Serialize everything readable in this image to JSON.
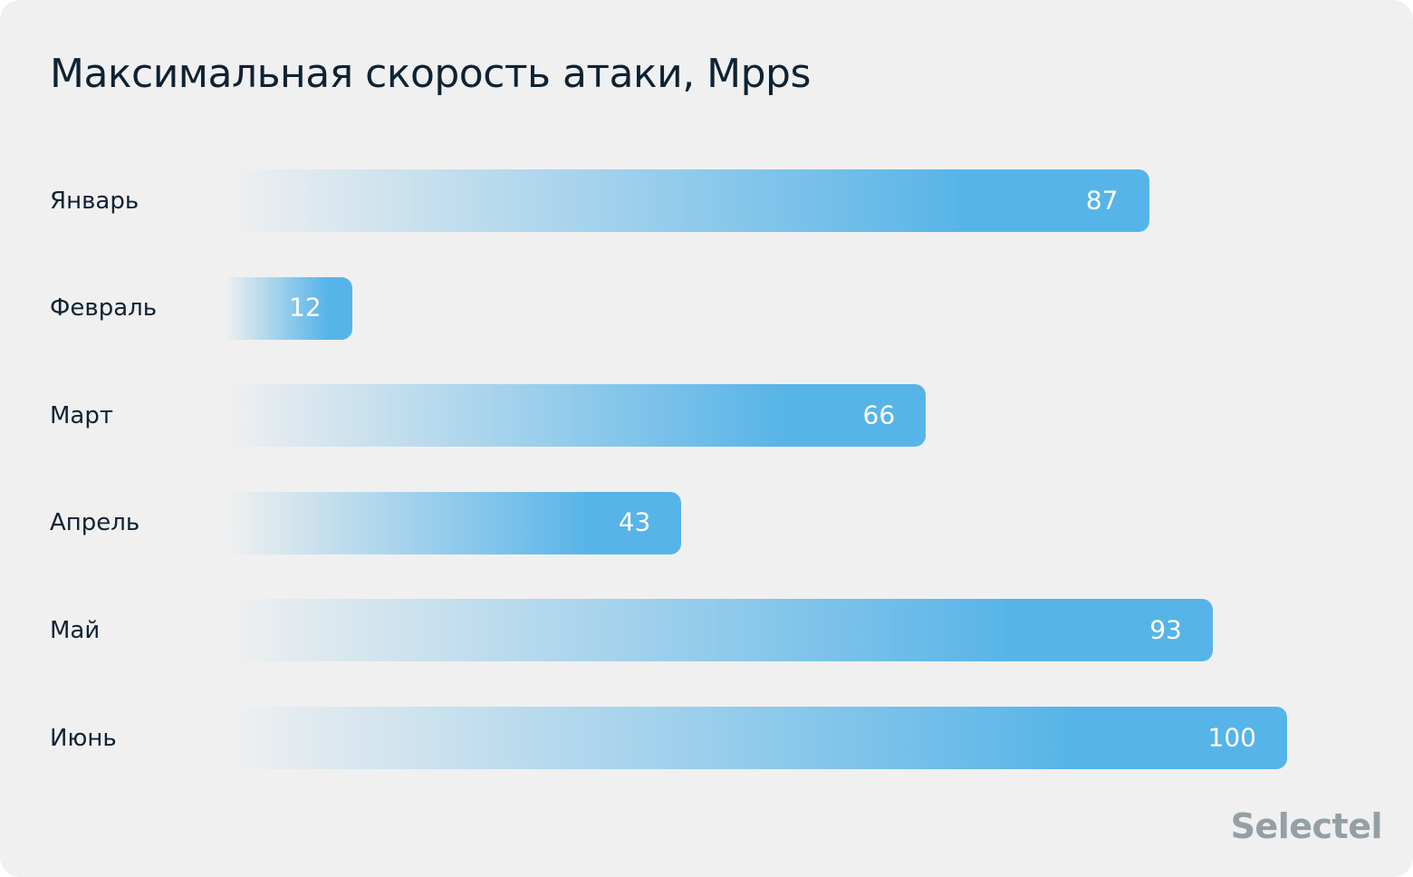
{
  "chart_data": {
    "type": "bar",
    "orientation": "horizontal",
    "title": "Максимальная скорость атаки, Mpps",
    "categories": [
      "Январь",
      "Февраль",
      "Март",
      "Апрель",
      "Май",
      "Июнь"
    ],
    "values": [
      87,
      12,
      66,
      43,
      93,
      100
    ],
    "xlim": [
      0,
      100
    ],
    "grid": false,
    "bar_color": "#57b4e8",
    "data_labels": true
  },
  "branding": {
    "logo": "Selectel"
  }
}
